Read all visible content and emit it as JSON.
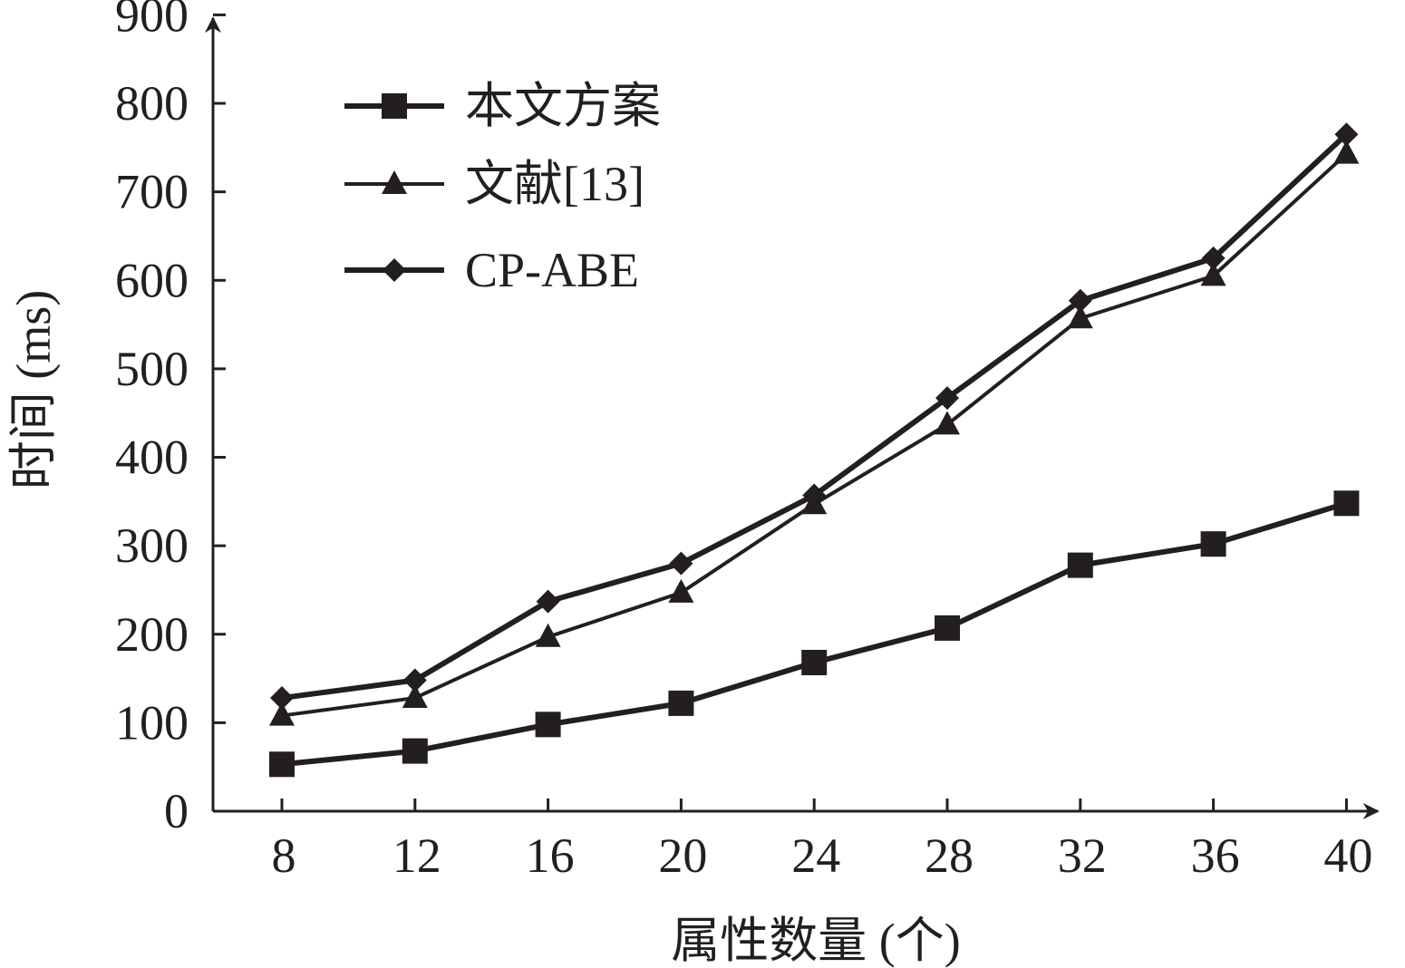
{
  "chart_data": {
    "type": "line",
    "title": "",
    "xlabel": "属性数量 (个)",
    "ylabel": "时间 (ms)",
    "x": [
      8,
      12,
      16,
      20,
      24,
      28,
      32,
      36,
      40
    ],
    "x_tick_labels": [
      "8",
      "12",
      "16",
      "20",
      "24",
      "28",
      "32",
      "36",
      "40"
    ],
    "y_ticks": [
      0,
      100,
      200,
      300,
      400,
      500,
      600,
      700,
      800,
      900
    ],
    "y_tick_labels": [
      "0",
      "100",
      "200",
      "300",
      "400",
      "500",
      "600",
      "700",
      "800",
      "900"
    ],
    "xlim": [
      6,
      42
    ],
    "ylim": [
      0,
      900
    ],
    "grid": false,
    "legend_position": "top-left",
    "series": [
      {
        "name": "本文方案",
        "marker": "square",
        "values": [
          53,
          68,
          98,
          122,
          168,
          207,
          278,
          302,
          348
        ]
      },
      {
        "name": "文献[13]",
        "marker": "triangle",
        "values": [
          108,
          128,
          197,
          247,
          347,
          437,
          557,
          605,
          743
        ]
      },
      {
        "name": "CP-ABE",
        "marker": "diamond",
        "values": [
          128,
          148,
          237,
          280,
          357,
          467,
          577,
          625,
          765
        ]
      }
    ],
    "colors": {
      "line": "#231f20",
      "background": "#ffffff"
    }
  }
}
